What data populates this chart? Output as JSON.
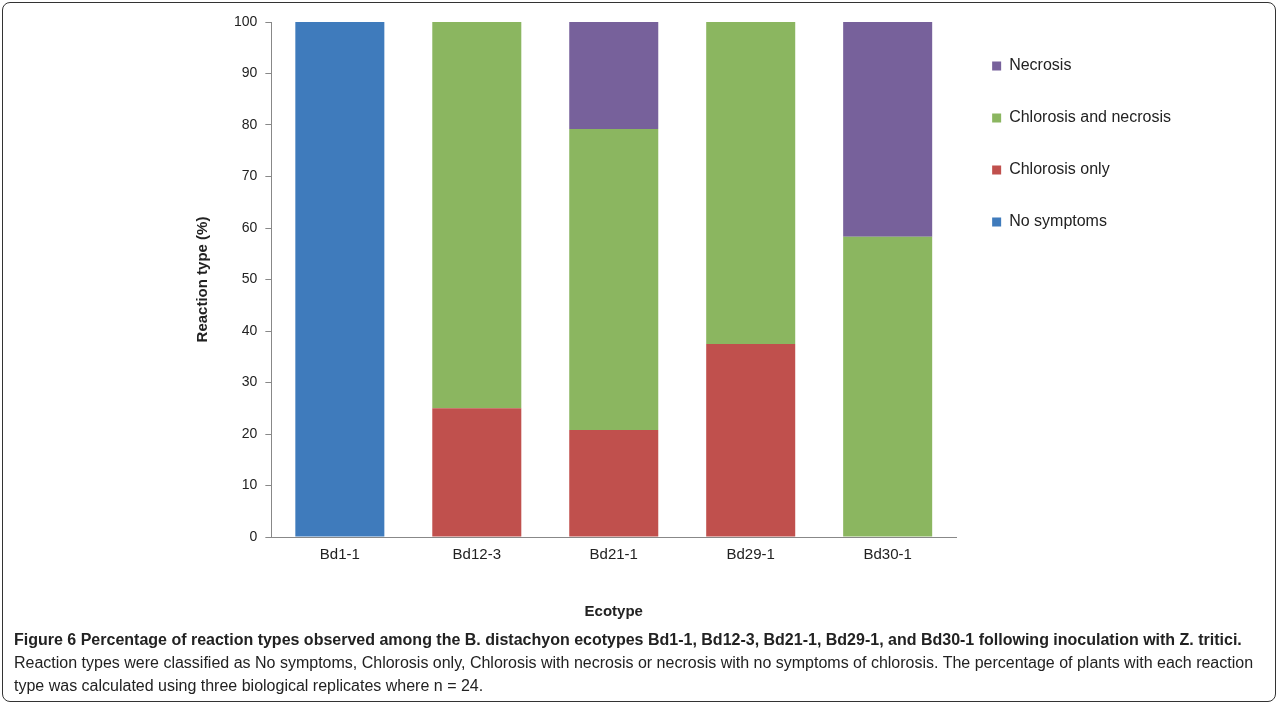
{
  "chart_data": {
    "type": "bar",
    "stacked": true,
    "title": "Figure 6 Percentage of reaction types observed among the B. distachyon ecotypes Bd1-1, Bd12-3, Bd21-1, Bd29-1, and Bd30-1 following inoculation with Z. tritici.",
    "annotations": [
      "Reaction types were classified as No symptoms, Chlorosis only, Chlorosis with necrosis or necrosis with no symptoms of chlorosis. The percentage of plants with each reaction type was calculated using three biological replicates where n = 24."
    ],
    "xlabel": "Ecotype",
    "ylabel": "Reaction type (%)",
    "categories": [
      "Bd1-1",
      "Bd12-3",
      "Bd21-1",
      "Bd29-1",
      "Bd30-1"
    ],
    "series": [
      {
        "name": "No symptoms",
        "color": "#3f7bbc",
        "values": [
          100,
          0,
          0,
          0,
          0
        ]
      },
      {
        "name": "Chlorosis only",
        "color": "#c0504d",
        "values": [
          0,
          25,
          20.8,
          37.5,
          0
        ]
      },
      {
        "name": "Chlorosis and necrosis",
        "color": "#8bb660",
        "values": [
          0,
          75,
          58.4,
          62.5,
          58.3
        ]
      },
      {
        "name": "Necrosis",
        "color": "#77619b",
        "values": [
          0,
          0,
          20.8,
          0,
          41.7
        ]
      }
    ],
    "ylim": [
      0,
      100
    ],
    "yticks": [
      0,
      10,
      20,
      30,
      40,
      50,
      60,
      70,
      80,
      90,
      100
    ],
    "grid": false,
    "legend": "right"
  }
}
